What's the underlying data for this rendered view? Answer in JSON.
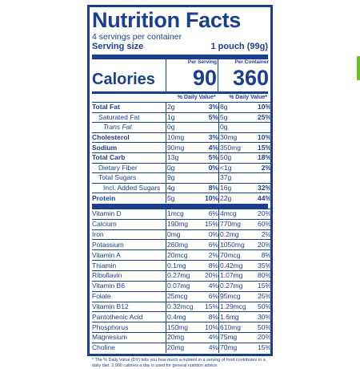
{
  "title": "Nutrition Facts",
  "servings_per_container": "4 servings per container",
  "serving_size_label": "Serving size",
  "serving_size_value": "1 pouch (99g)",
  "calories_label": "Calories",
  "per_serving_header": "Per Serving",
  "per_container_header": "Per Container",
  "calories_serving": "90",
  "calories_container": "360",
  "dv_header": "% Daily Value*",
  "macros": [
    {
      "name": "Total Fat",
      "s_amt": "2g",
      "s_dv": "3%",
      "c_amt": "8g",
      "c_dv": "10%"
    },
    {
      "name": "Saturated Fat",
      "s_amt": "1g",
      "s_dv": "5%",
      "c_amt": "5g",
      "c_dv": "25%"
    },
    {
      "name": "Trans Fat",
      "s_amt": "0g",
      "s_dv": "",
      "c_amt": "0g",
      "c_dv": ""
    },
    {
      "name": "Cholesterol",
      "s_amt": "10mg",
      "s_dv": "3%",
      "c_amt": "30mg",
      "c_dv": "10%"
    },
    {
      "name": "Sodium",
      "s_amt": "90mg",
      "s_dv": "4%",
      "c_amt": "350mg",
      "c_dv": "15%"
    },
    {
      "name": "Total Carb",
      "s_amt": "13g",
      "s_dv": "5%",
      "c_amt": "50g",
      "c_dv": "18%"
    },
    {
      "name": "Dietary Fiber",
      "s_amt": "0g",
      "s_dv": "0%",
      "c_amt": "<1g",
      "c_dv": "2%"
    },
    {
      "name": "Total Sugars",
      "s_amt": "9g",
      "s_dv": "",
      "c_amt": "37g",
      "c_dv": ""
    },
    {
      "name": "Incl. Added Sugars",
      "s_amt": "4g",
      "s_dv": "8%",
      "c_amt": "16g",
      "c_dv": "32%"
    },
    {
      "name": "Protein",
      "s_amt": "5g",
      "s_dv": "10%",
      "c_amt": "22g",
      "c_dv": "44%"
    }
  ],
  "micros": [
    {
      "name": "Vitamin D",
      "s_amt": "1mcg",
      "s_dv": "6%",
      "c_amt": "4mcg",
      "c_dv": "20%"
    },
    {
      "name": "Calcium",
      "s_amt": "190mg",
      "s_dv": "15%",
      "c_amt": "770mg",
      "c_dv": "60%"
    },
    {
      "name": "Iron",
      "s_amt": "0mg",
      "s_dv": "0%",
      "c_amt": "0.2mg",
      "c_dv": "2%"
    },
    {
      "name": "Potassium",
      "s_amt": "260mg",
      "s_dv": "6%",
      "c_amt": "1050mg",
      "c_dv": "20%"
    },
    {
      "name": "Vitamin A",
      "s_amt": "20mcg",
      "s_dv": "2%",
      "c_amt": "70mcg",
      "c_dv": "8%"
    },
    {
      "name": "Thiamin",
      "s_amt": "0.1mg",
      "s_dv": "8%",
      "c_amt": "0.42mg",
      "c_dv": "35%"
    },
    {
      "name": "Riboflavin",
      "s_amt": "0.27mg",
      "s_dv": "20%",
      "c_amt": "1.07mg",
      "c_dv": "80%"
    },
    {
      "name": "Vitamin B6",
      "s_amt": "0.07mg",
      "s_dv": "4%",
      "c_amt": "0.27mg",
      "c_dv": "15%"
    },
    {
      "name": "Folate",
      "s_amt": "25mcg",
      "s_dv": "6%",
      "c_amt": "95mcg",
      "c_dv": "25%"
    },
    {
      "name": "Vitamin B12",
      "s_amt": "0.32mcg",
      "s_dv": "15%",
      "c_amt": "1.29mcg",
      "c_dv": "50%"
    },
    {
      "name": "Pantothenic Acid",
      "s_amt": "0.4mg",
      "s_dv": "8%",
      "c_amt": "1.6mg",
      "c_dv": "30%"
    },
    {
      "name": "Phosphorus",
      "s_amt": "150mg",
      "s_dv": "10%",
      "c_amt": "610mg",
      "c_dv": "50%"
    },
    {
      "name": "Magnesium",
      "s_amt": "20mg",
      "s_dv": "4%",
      "c_amt": "75mg",
      "c_dv": "20%"
    },
    {
      "name": "Choline",
      "s_amt": "20mg",
      "s_dv": "4%",
      "c_amt": "70mg",
      "c_dv": "15%"
    }
  ],
  "footnote": "* The % Daily Value (DV) tells you how much a nutrient in a serving of food contributes to a daily diet. 2,000 calories a day is used for general nutrition advice.",
  "colors": {
    "ink": "#1b3f8f",
    "accent_edge": "#6cbf2a",
    "background": "#ffffff"
  }
}
